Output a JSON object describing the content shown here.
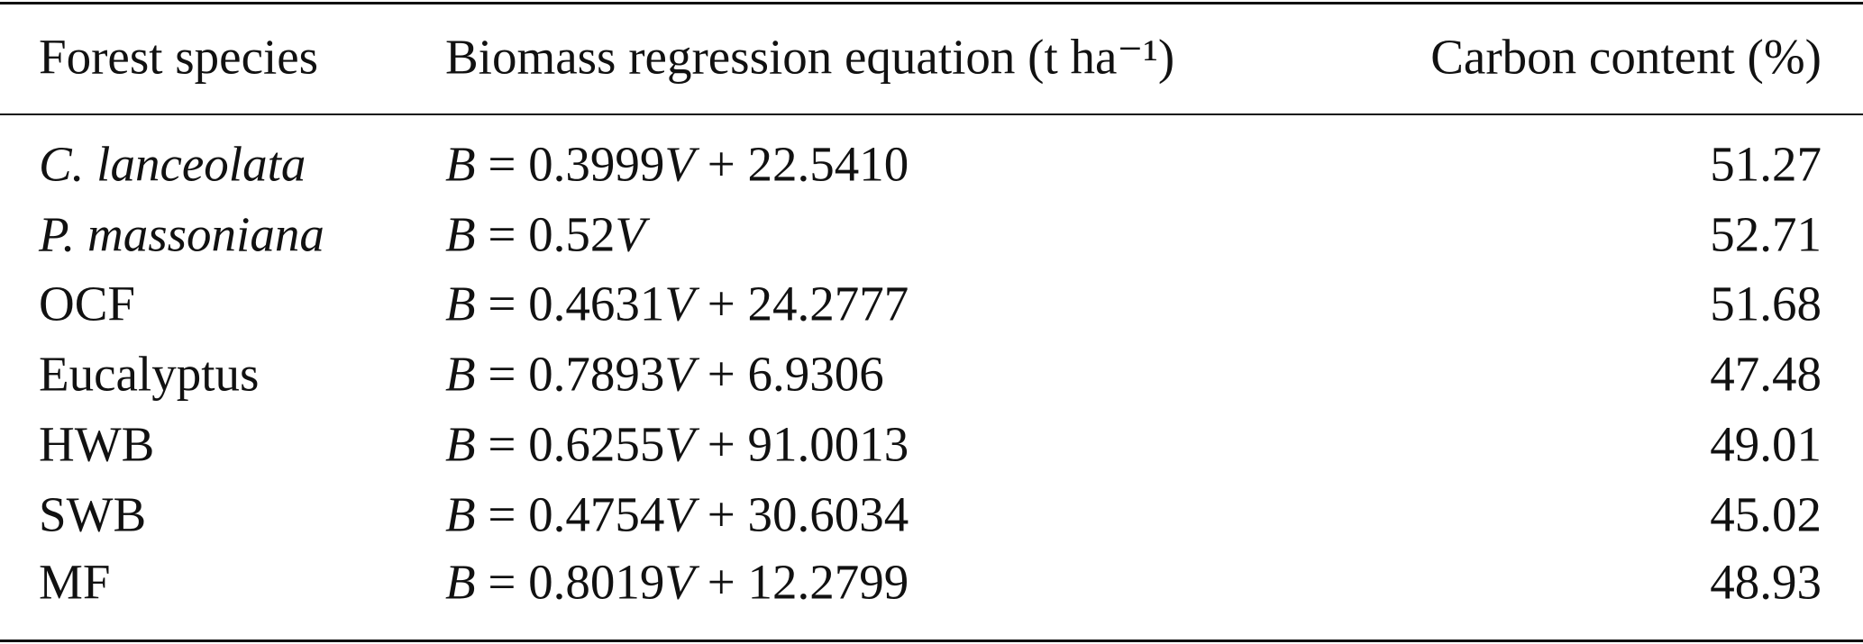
{
  "table": {
    "header": [
      "Forest species",
      "Biomass regression equation (t ha⁻¹)",
      "Carbon content (%)"
    ],
    "rows": [
      [
        "C. lanceolata",
        "B = 0.3999V + 22.5410",
        51.27
      ],
      [
        "P. massoniana",
        "B = 0.52V",
        52.71
      ],
      [
        "OCF",
        "B = 0.4631V + 24.2777",
        51.68
      ],
      [
        "Eucalyptus",
        "B = 0.7893V + 6.9306",
        47.48
      ],
      [
        "HWB",
        "B = 0.6255V + 91.0013",
        49.01
      ],
      [
        "SWB",
        "B = 0.4754V + 30.6034",
        45.02
      ],
      [
        "MF",
        "B = 0.8019V + 12.2799",
        48.93
      ]
    ]
  }
}
